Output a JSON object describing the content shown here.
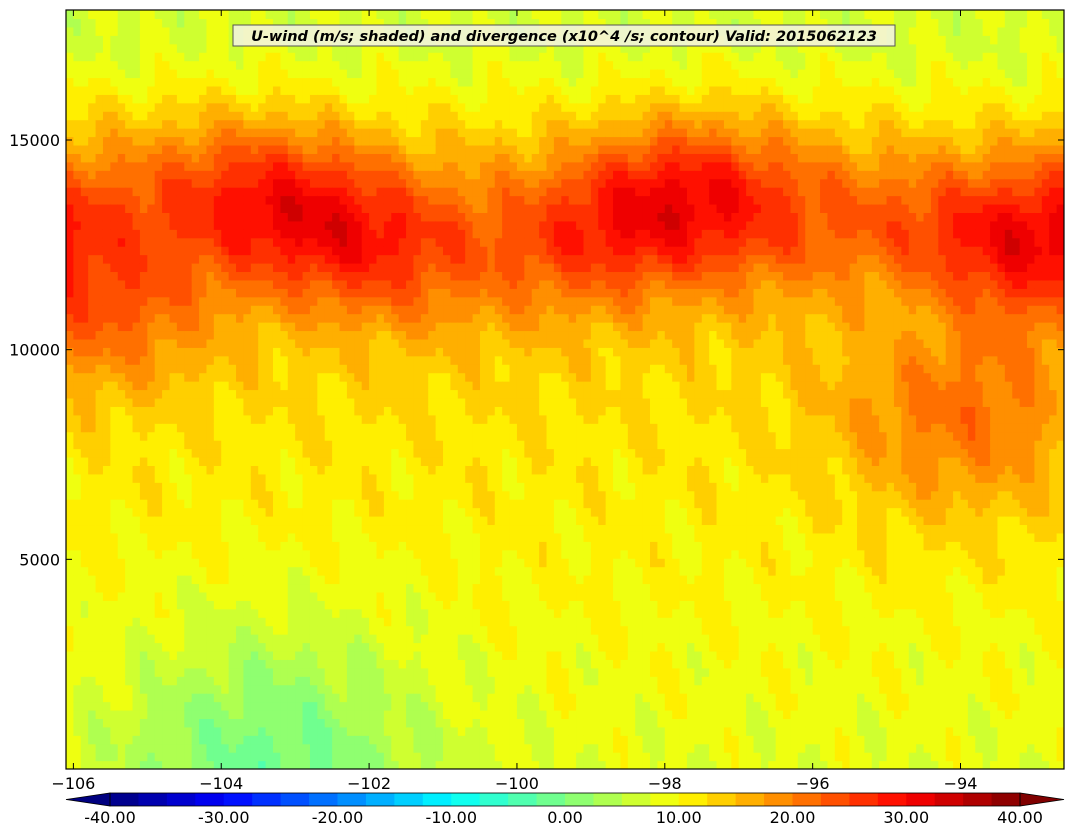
{
  "chart_data": {
    "type": "heatmap",
    "title": "U-wind (m/s; shaded) and divergence (x10^4 /s; contour) Valid: 2015062123",
    "xlabel": "",
    "ylabel": "",
    "xlim": [
      -106.1,
      -92.6
    ],
    "ylim": [
      0,
      18100
    ],
    "x_ticks": [
      -106,
      -104,
      -102,
      -100,
      -98,
      -96,
      -94
    ],
    "x_tick_labels": [
      "−106",
      "−104",
      "−102",
      "−100",
      "−98",
      "−96",
      "−94"
    ],
    "y_ticks": [
      5000,
      10000,
      15000
    ],
    "y_tick_labels": [
      "5000",
      "10000",
      "15000"
    ],
    "grid": false,
    "colormap": "jet",
    "color_range": [
      -40,
      40
    ],
    "colorbar": {
      "orientation": "horizontal",
      "placement": "bottom",
      "extend": "both",
      "ticks": [
        -40,
        -30,
        -20,
        -10,
        0,
        10,
        20,
        30,
        40
      ],
      "tick_labels": [
        "-40.00",
        "-30.00",
        "-20.00",
        "-10.00",
        "0.00",
        "10.00",
        "20.00",
        "30.00",
        "40.00"
      ]
    },
    "description": "Vertical cross-section of zonal wind; strongest westerlies (~25-30 m/s) in a band near 12000-14500 m, weaker (5-15 m/s) below, near-zero near the surface around -103.5."
  }
}
